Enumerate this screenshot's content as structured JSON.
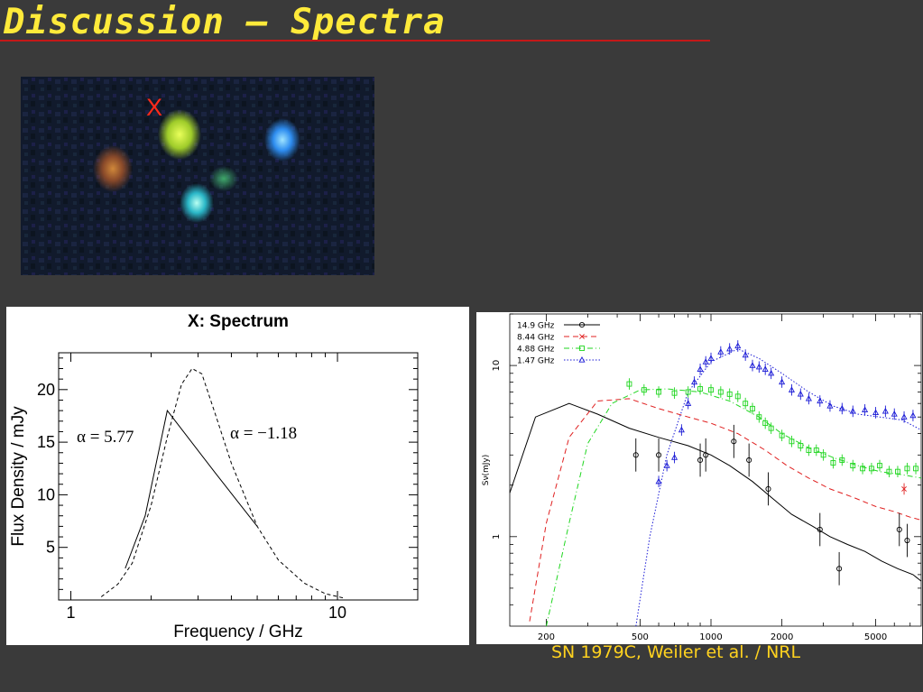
{
  "slide": {
    "title": "Discussion – Spectra",
    "credit": "SN 1979C, Weiler et al. / NRL",
    "colors": {
      "background": "#3a3a3a",
      "title": "#ffea3a",
      "rule": "#c31818",
      "credit": "#ffd21f",
      "marker": "#ff2a1a"
    }
  },
  "image": {
    "marker_label": "X"
  },
  "chart_data": [
    {
      "type": "line",
      "title": "X: Spectrum",
      "xlabel": "Frequency / GHz",
      "ylabel": "Flux Density / mJy",
      "x_scale": "log",
      "xlim": [
        0.9,
        20
      ],
      "ylim": [
        0,
        23.5
      ],
      "x_ticks": [
        1,
        10
      ],
      "y_ticks": [
        5,
        10,
        15,
        20
      ],
      "annotations": [
        "α = 5.77",
        "α = −1.18"
      ],
      "grid": false,
      "series": [
        {
          "style": "solid",
          "x": [
            1.6,
            1.9,
            2.3,
            3.5,
            5.0
          ],
          "y": [
            3,
            8,
            18,
            12,
            7
          ]
        },
        {
          "style": "dashed",
          "x": [
            1.3,
            1.5,
            1.7,
            2.0,
            2.3,
            2.6,
            2.85,
            3.1,
            3.5,
            4.0,
            5.0,
            6.0,
            7.5,
            9.0,
            10.5
          ],
          "y": [
            0.3,
            1.5,
            3.5,
            9.0,
            15.5,
            20.5,
            22.0,
            21.5,
            17.5,
            13.0,
            7.0,
            3.8,
            1.6,
            0.6,
            0.2
          ]
        }
      ]
    },
    {
      "type": "line",
      "xlabel": "",
      "ylabel": "Sν(mJy)",
      "x_scale": "log",
      "y_scale": "log",
      "xlim": [
        140,
        7800
      ],
      "ylim": [
        0.3,
        20
      ],
      "x_ticks": [
        200,
        500,
        1000,
        2000,
        5000
      ],
      "y_ticks": [
        1,
        10
      ],
      "legend_position": "top-left",
      "series": [
        {
          "name": "14.9 GHz",
          "color": "#000000",
          "marker": "circle",
          "style": "solid",
          "x": [
            140,
            180,
            250,
            330,
            450,
            600,
            800,
            1000,
            1200,
            1500,
            1800,
            2200,
            2700,
            3200,
            3800,
            4500,
            5300,
            6200,
            7200,
            7800
          ],
          "y": [
            1.8,
            5.0,
            6.0,
            5.2,
            4.3,
            3.8,
            3.4,
            3.0,
            2.6,
            2.1,
            1.7,
            1.35,
            1.15,
            1.0,
            0.9,
            0.82,
            0.72,
            0.65,
            0.6,
            0.55
          ],
          "points_x": [
            480,
            600,
            900,
            950,
            1250,
            1450,
            1750,
            2900,
            3500,
            6300,
            6800
          ],
          "points_y": [
            3.0,
            3.0,
            2.8,
            3.0,
            3.6,
            2.8,
            1.9,
            1.1,
            0.65,
            1.1,
            0.95
          ]
        },
        {
          "name": "8.44 GHz",
          "color": "#e02020",
          "marker": "x",
          "style": "dashed",
          "x": [
            170,
            200,
            250,
            330,
            450,
            600,
            800,
            1000,
            1300,
            1700,
            2100,
            2600,
            3200,
            4000,
            5000,
            6000,
            7000,
            7800
          ],
          "y": [
            0.32,
            1.2,
            3.8,
            6.2,
            6.4,
            5.6,
            5.0,
            4.6,
            4.0,
            3.2,
            2.6,
            2.2,
            1.9,
            1.7,
            1.5,
            1.4,
            1.3,
            1.25
          ],
          "points_x": [
            6600
          ],
          "points_y": [
            1.9
          ]
        },
        {
          "name": "4.88 GHz",
          "color": "#1fd61f",
          "marker": "square",
          "style": "dash-dot",
          "x": [
            200,
            250,
            300,
            380,
            500,
            650,
            900,
            1200,
            1600,
            2000,
            2600,
            3300,
            4200,
            5200,
            6500,
            7800
          ],
          "y": [
            0.3,
            1.2,
            3.5,
            6.0,
            7.2,
            7.3,
            7.0,
            6.2,
            5.0,
            4.0,
            3.3,
            2.9,
            2.6,
            2.4,
            2.3,
            2.2
          ],
          "points_x": [
            450,
            520,
            600,
            700,
            800,
            900,
            1000,
            1100,
            1200,
            1300,
            1400,
            1500,
            1600,
            1700,
            1800,
            2000,
            2200,
            2400,
            2600,
            2800,
            3000,
            3300,
            3600,
            4000,
            4400,
            4800,
            5200,
            5700,
            6200,
            6800,
            7400
          ],
          "points_y": [
            7.8,
            7.2,
            7.0,
            6.9,
            7.0,
            7.3,
            7.2,
            7.0,
            6.8,
            6.6,
            6.0,
            5.6,
            5.0,
            4.6,
            4.3,
            3.9,
            3.6,
            3.4,
            3.2,
            3.2,
            3.0,
            2.7,
            2.8,
            2.6,
            2.5,
            2.5,
            2.6,
            2.4,
            2.4,
            2.5,
            2.5
          ]
        },
        {
          "name": "1.47 GHz",
          "color": "#1a1ad6",
          "marker": "triangle",
          "style": "dotted",
          "x": [
            480,
            550,
            650,
            800,
            1000,
            1300,
            1600,
            2000,
            2600,
            3300,
            4200,
            5200,
            6500,
            7800
          ],
          "y": [
            0.3,
            1.0,
            3.0,
            7.0,
            10.5,
            12.5,
            11.0,
            9.0,
            7.0,
            5.8,
            5.2,
            5.0,
            4.8,
            4.2
          ],
          "points_x": [
            600,
            650,
            700,
            750,
            800,
            850,
            900,
            950,
            1000,
            1100,
            1200,
            1300,
            1400,
            1500,
            1600,
            1700,
            1800,
            2000,
            2200,
            2400,
            2600,
            2900,
            3200,
            3600,
            4000,
            4500,
            5000,
            5500,
            6000,
            6600,
            7200
          ],
          "points_y": [
            2.1,
            2.6,
            2.9,
            4.2,
            6.0,
            8.0,
            9.5,
            10.5,
            11.0,
            12.0,
            12.5,
            13.0,
            11.5,
            10.0,
            9.8,
            9.5,
            9.0,
            8.0,
            7.2,
            6.8,
            6.4,
            6.2,
            5.8,
            5.6,
            5.4,
            5.5,
            5.3,
            5.4,
            5.2,
            5.0,
            5.1
          ]
        }
      ]
    }
  ]
}
